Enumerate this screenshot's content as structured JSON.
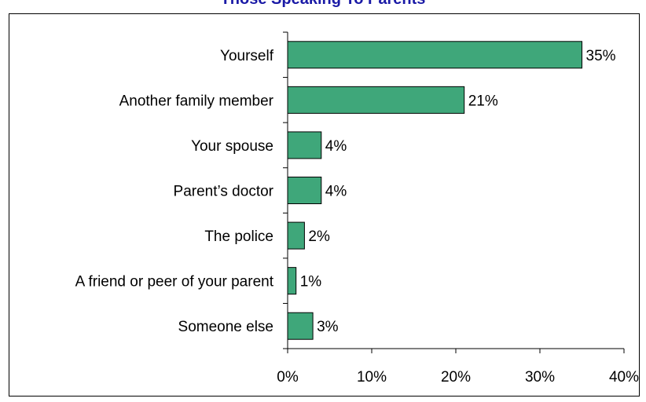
{
  "chart_data": {
    "type": "bar",
    "orientation": "horizontal",
    "title": "Those Speaking To Parents",
    "categories": [
      "Yourself",
      "Another family member",
      "Your spouse",
      "Parent’s doctor",
      "The police",
      "A friend or peer of your parent",
      "Someone else"
    ],
    "values": [
      35,
      21,
      4,
      4,
      2,
      1,
      3
    ],
    "value_labels": [
      "35%",
      "21%",
      "4%",
      "4%",
      "2%",
      "1%",
      "3%"
    ],
    "xlim": [
      0,
      40
    ],
    "x_ticks": [
      0,
      10,
      20,
      30,
      40
    ],
    "x_tick_labels": [
      "0%",
      "10%",
      "20%",
      "30%",
      "40%"
    ],
    "xlabel": "",
    "ylabel": "",
    "grid": false,
    "legend": "none",
    "colors": {
      "bar": "#3fa77a",
      "bar_border": "#000000",
      "title": "#1a1aa6"
    }
  }
}
